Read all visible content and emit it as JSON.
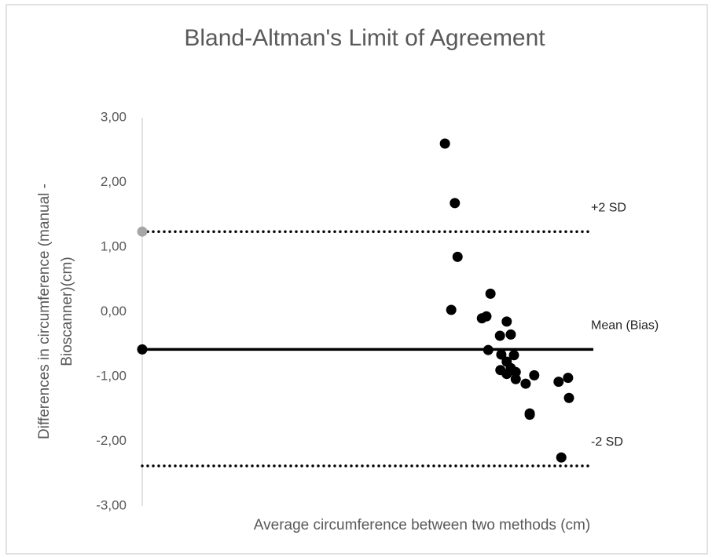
{
  "chart_data": {
    "type": "scatter",
    "title": "Bland-Altman's Limit of Agreement",
    "xlabel": "Average circumference between two methods (cm)",
    "ylabel": [
      "Differences in circumference (manual -",
      "Bioscanner)(cm)"
    ],
    "xlim": [
      0,
      100
    ],
    "ylim": [
      -3,
      3
    ],
    "yticks": [
      {
        "value": 3,
        "label": "3,00"
      },
      {
        "value": 2,
        "label": "2,00"
      },
      {
        "value": 1,
        "label": "1,00"
      },
      {
        "value": 0,
        "label": "0,00"
      },
      {
        "value": -1,
        "label": "-1,00"
      },
      {
        "value": -2,
        "label": "-2,00"
      },
      {
        "value": -3,
        "label": "-3,00"
      }
    ],
    "color": "#000000",
    "x": [
      67.1,
      69.3,
      69.9,
      68.5,
      77.2,
      75.3,
      76.3,
      80.8,
      79.3,
      81.7,
      76.7,
      79.6,
      82.4,
      80.8,
      79.4,
      81.7,
      82.8,
      80.8,
      82.8,
      85.0,
      86.9,
      85.9,
      85.9,
      92.3,
      94.4,
      94.6,
      92.9
    ],
    "y": [
      2.6,
      1.68,
      0.85,
      0.03,
      0.28,
      -0.1,
      -0.07,
      -0.15,
      -0.37,
      -0.35,
      -0.59,
      -0.66,
      -0.67,
      -0.77,
      -0.9,
      -0.87,
      -0.93,
      -0.96,
      -1.04,
      -1.11,
      -0.98,
      -1.57,
      -1.59,
      -1.08,
      -1.02,
      -1.33,
      -2.25
    ],
    "lines": [
      {
        "label": "+2 SD",
        "value": 1.24,
        "style": "dotted",
        "color": "#000000",
        "marker": "#a6a6a6"
      },
      {
        "label": "Mean (Bias)",
        "value": -0.58,
        "style": "solid",
        "color": "#000000",
        "marker": "#000000"
      },
      {
        "label": "-2 SD",
        "value": -2.38,
        "style": "dotted",
        "color": "#000000"
      }
    ]
  }
}
